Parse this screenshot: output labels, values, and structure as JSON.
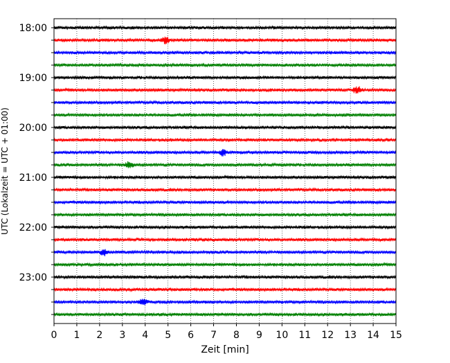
{
  "chart_data": {
    "type": "line",
    "subtype": "helicorder-seismogram",
    "xlabel": "Zeit  [min]",
    "ylabel": "UTC (Lokalzeit = UTC + 01:00)",
    "xlim": [
      0,
      15
    ],
    "x_ticks": [
      0,
      1,
      2,
      3,
      4,
      5,
      6,
      7,
      8,
      9,
      10,
      11,
      12,
      13,
      14,
      15
    ],
    "x_tick_labels": [
      "0",
      "1",
      "2",
      "3",
      "4",
      "5",
      "6",
      "7",
      "8",
      "9",
      "10",
      "11",
      "12",
      "13",
      "14",
      "15"
    ],
    "vertical_grid": "dotted, at every minute",
    "trace_interval_minutes": 15,
    "trace_count": 24,
    "trace_start_times": [
      "18:00",
      "18:15",
      "18:30",
      "18:45",
      "19:00",
      "19:15",
      "19:30",
      "19:45",
      "20:00",
      "20:15",
      "20:30",
      "20:45",
      "21:00",
      "21:15",
      "21:30",
      "21:45",
      "22:00",
      "22:15",
      "22:30",
      "22:45",
      "23:00",
      "23:15",
      "23:30",
      "23:45"
    ],
    "y_tick_labels": [
      "18:00",
      "19:00",
      "20:00",
      "21:00",
      "22:00",
      "23:00"
    ],
    "color_cycle": [
      "#000000",
      "#ff0000",
      "#0000ff",
      "#008000"
    ],
    "noted_spikes": [
      {
        "trace": "18:15",
        "minute": 4.9
      },
      {
        "trace": "19:15",
        "minute": 13.3
      },
      {
        "trace": "20:30",
        "minute": 7.4
      },
      {
        "trace": "20:45",
        "minute": 3.3
      },
      {
        "trace": "22:30",
        "minute": 2.2
      },
      {
        "trace": "23:30",
        "minute": 3.9
      }
    ]
  }
}
